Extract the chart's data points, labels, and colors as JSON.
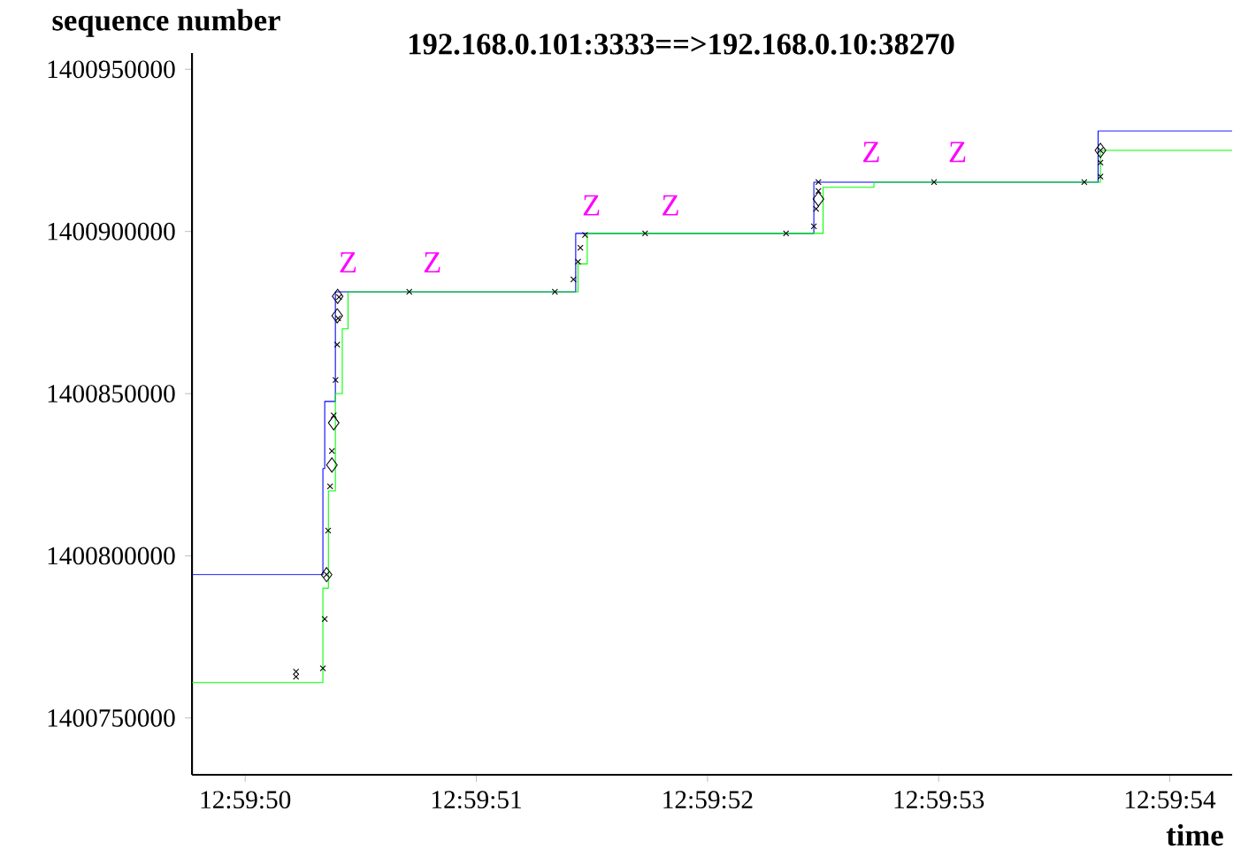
{
  "chart_data": {
    "type": "step",
    "title": "192.168.0.101:3333==>192.168.0.10:38270",
    "xlabel": "time",
    "ylabel": "sequence number",
    "xlim": [
      12.9971583,
      12.9984083
    ],
    "ylim": [
      1400732500,
      1400955000
    ],
    "xticks": [
      {
        "value": 12.9972222,
        "label": "12:59:50"
      },
      {
        "value": 12.9975,
        "label": "12:59:51"
      },
      {
        "value": 12.9977778,
        "label": "12:59:52"
      },
      {
        "value": 12.9980556,
        "label": "12:59:53"
      },
      {
        "value": 12.9983333,
        "label": "12:59:54"
      }
    ],
    "yticks": [
      1400750000,
      1400800000,
      1400850000,
      1400900000,
      1400950000
    ],
    "series": [
      {
        "color": "#0000ff",
        "marker": "none",
        "x": [
          12.9971583,
          12.9973156,
          12.9973178,
          12.9973306,
          12.9976194,
          12.9979056,
          12.9982472,
          12.9984083
        ],
        "values": [
          1400794200,
          1400826900,
          1400847600,
          1400881400,
          1400899400,
          1400915200,
          1400931000,
          1400931000
        ]
      },
      {
        "color": "#00ff00",
        "marker": "none",
        "x": [
          12.9971583,
          12.9973156,
          12.9973222,
          12.9973306,
          12.9973389,
          12.9973458,
          12.9976222,
          12.9976333,
          12.9979167,
          12.9979778,
          12.99825,
          12.9984083
        ],
        "values": [
          1400760900,
          1400790000,
          1400820000,
          1400850000,
          1400870000,
          1400881400,
          1400890000,
          1400899400,
          1400913600,
          1400915200,
          1400925000,
          1400925000
        ]
      },
      {
        "type": "scatter",
        "color": "#000000",
        "marker": "cross",
        "x": [
          12.9972833,
          12.9972833,
          12.9973156,
          12.9973178,
          12.99732,
          12.9973219,
          12.9973242,
          12.9973264,
          12.9973286,
          12.9973308,
          12.9973328,
          12.9973339,
          12.997335,
          12.9974194,
          12.9975944,
          12.9976167,
          12.9976222,
          12.997625,
          12.9976306,
          12.9977028,
          12.9978722,
          12.9979056,
          12.9979083,
          12.9979111,
          12.9979111,
          12.99805,
          12.9982306,
          12.99825,
          12.99825,
          12.99825
        ],
        "values": [
          1400762700,
          1400764300,
          1400765300,
          1400780500,
          1400794200,
          1400807800,
          1400821400,
          1400832300,
          1400843300,
          1400854200,
          1400865100,
          1400873200,
          1400879800,
          1400881400,
          1400881400,
          1400885200,
          1400890700,
          1400895000,
          1400898900,
          1400899400,
          1400899400,
          1400901600,
          1400907000,
          1400912500,
          1400915200,
          1400915200,
          1400915200,
          1400916900,
          1400921200,
          1400925000
        ]
      },
      {
        "type": "scatter",
        "color": "#000000",
        "marker": "diamond",
        "x": [
          12.99732,
          12.9973264,
          12.9973286,
          12.9973328,
          12.9973333,
          12.9979111,
          12.99825
        ],
        "values": [
          1400794200,
          1400828000,
          1400841000,
          1400874000,
          1400880000,
          1400910000,
          1400925000
        ]
      }
    ],
    "annotations": [
      "Z",
      "Z",
      "Z",
      "Z",
      "Z",
      "Z"
    ]
  }
}
